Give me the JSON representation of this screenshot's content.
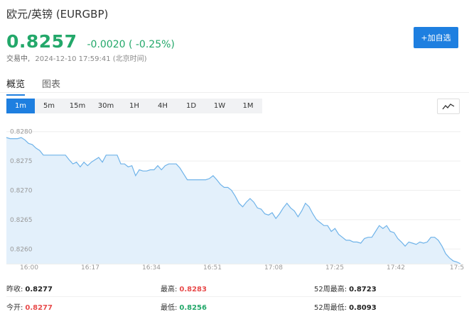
{
  "header": {
    "title": "欧元/英镑 (EURGBP)",
    "price": "0.8257",
    "change": "-0.0020 ( -0.25%)",
    "state": "交易中,",
    "datetime": "2024-12-10 17:59:41 (北京时间)",
    "fav_label": "+加自选",
    "price_color": "#23a86a",
    "accent": "#1e7fe0"
  },
  "tabs": [
    {
      "label": "概览",
      "active": true
    },
    {
      "label": "图表",
      "active": false
    }
  ],
  "periods": [
    {
      "label": "1m",
      "active": true
    },
    {
      "label": "5m",
      "active": false
    },
    {
      "label": "15m",
      "active": false
    },
    {
      "label": "30m",
      "active": false
    },
    {
      "label": "1H",
      "active": false
    },
    {
      "label": "4H",
      "active": false
    },
    {
      "label": "1D",
      "active": false
    },
    {
      "label": "1W",
      "active": false
    },
    {
      "label": "1M",
      "active": false
    }
  ],
  "chart_toggle_icon": "line-chart-icon",
  "chart_data": {
    "type": "area",
    "y_ticks": [
      "0.8280",
      "0.8275",
      "0.8270",
      "0.8265",
      "0.8260"
    ],
    "x_ticks": [
      "16:00",
      "16:17",
      "16:34",
      "16:51",
      "17:08",
      "17:25",
      "17:42",
      "17:5"
    ],
    "ylim": [
      0.82575,
      0.82825
    ],
    "line_color": "#6fb3e9",
    "fill_color": "#e3f0fb",
    "values": [
      0.8279,
      0.82788,
      0.82788,
      0.82788,
      0.8279,
      0.82786,
      0.8278,
      0.82778,
      0.82772,
      0.82768,
      0.8276,
      0.8276,
      0.8276,
      0.8276,
      0.8276,
      0.8276,
      0.8276,
      0.82752,
      0.82745,
      0.82748,
      0.8274,
      0.82748,
      0.82742,
      0.82748,
      0.82752,
      0.82756,
      0.82748,
      0.8276,
      0.8276,
      0.8276,
      0.8276,
      0.82745,
      0.82745,
      0.8274,
      0.82742,
      0.82725,
      0.82735,
      0.82733,
      0.82733,
      0.82735,
      0.82735,
      0.82742,
      0.82735,
      0.82742,
      0.82745,
      0.82745,
      0.82745,
      0.82738,
      0.82728,
      0.82718,
      0.82718,
      0.82718,
      0.82718,
      0.82718,
      0.82718,
      0.8272,
      0.82725,
      0.82718,
      0.8271,
      0.82705,
      0.82705,
      0.827,
      0.8269,
      0.82678,
      0.82672,
      0.8268,
      0.82686,
      0.8268,
      0.8267,
      0.82668,
      0.8266,
      0.82658,
      0.82662,
      0.82652,
      0.8266,
      0.8267,
      0.82678,
      0.8267,
      0.82665,
      0.82655,
      0.82665,
      0.82678,
      0.82672,
      0.8266,
      0.8265,
      0.82645,
      0.8264,
      0.8264,
      0.8263,
      0.82635,
      0.82625,
      0.8262,
      0.82615,
      0.82615,
      0.82612,
      0.82612,
      0.8261,
      0.82618,
      0.8262,
      0.8262,
      0.8263,
      0.8264,
      0.82635,
      0.8264,
      0.8263,
      0.82628,
      0.82618,
      0.82612,
      0.82605,
      0.82612,
      0.8261,
      0.82608,
      0.82612,
      0.8261,
      0.82612,
      0.8262,
      0.8262,
      0.82615,
      0.82605,
      0.82592,
      0.82585,
      0.8258,
      0.82578,
      0.82575
    ]
  },
  "stats": [
    {
      "label": "昨收:",
      "value": "0.8277",
      "tone": "neutral"
    },
    {
      "label": "最高:",
      "value": "0.8283",
      "tone": "up"
    },
    {
      "label": "52周最高:",
      "value": "0.8723",
      "tone": "neutral"
    },
    {
      "label": "今开:",
      "value": "0.8277",
      "tone": "up"
    },
    {
      "label": "最低:",
      "value": "0.8256",
      "tone": "down"
    },
    {
      "label": "52周最低:",
      "value": "0.8093",
      "tone": "neutral"
    }
  ]
}
